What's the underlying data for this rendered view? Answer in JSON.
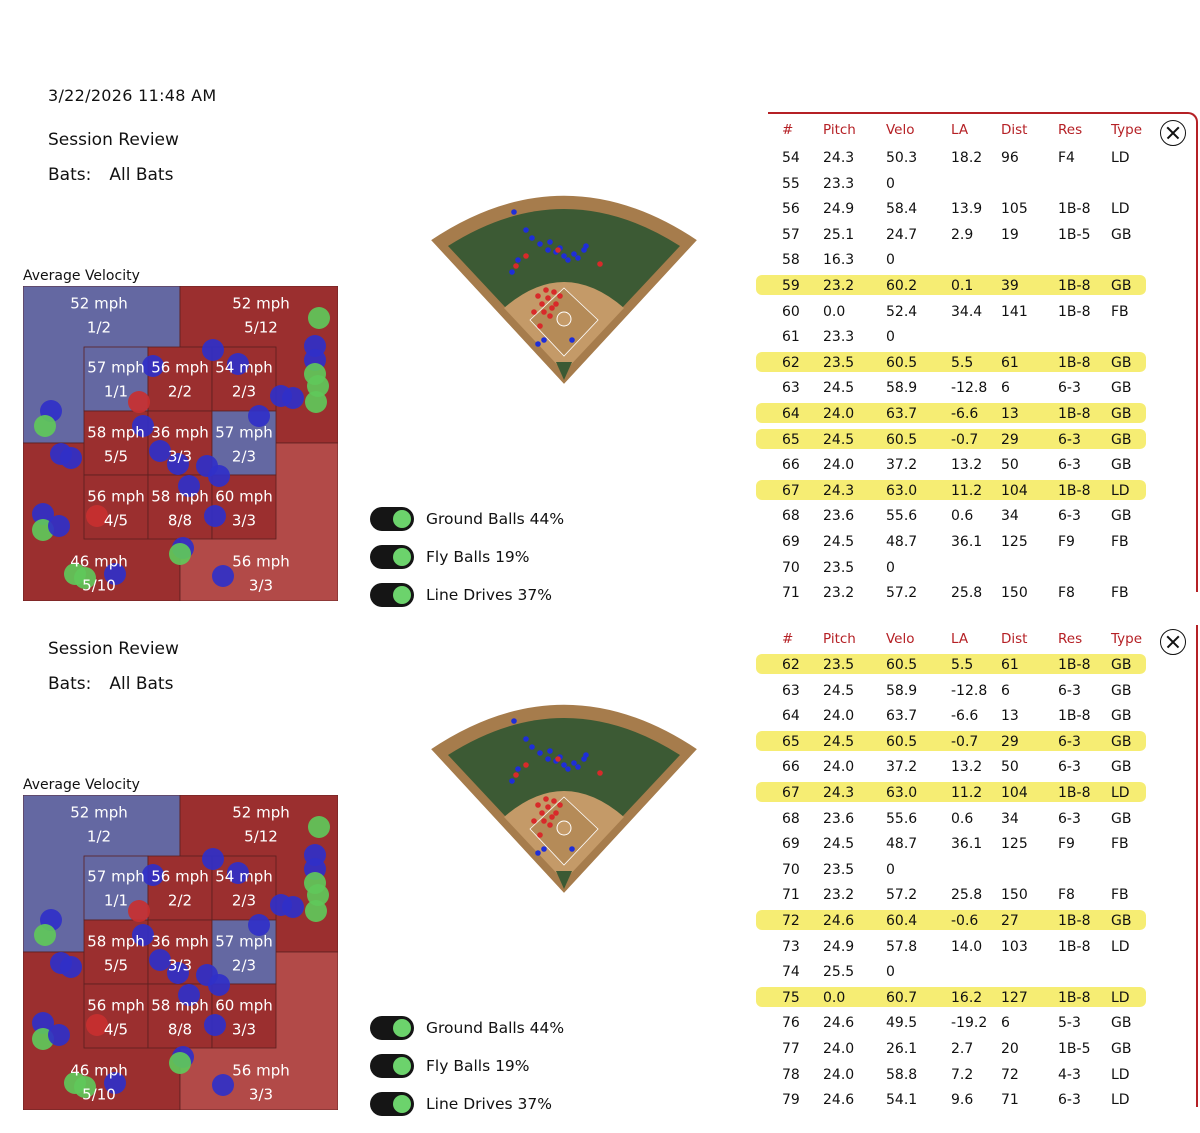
{
  "timestamp": "3/22/2026 11:48 AM",
  "colors": {
    "accent": "#b52025",
    "highlight": "#f4ea5a",
    "zone_red": "#9b2f2f",
    "zone_blue": "#6468a2",
    "toggle_green": "#6cd36c"
  },
  "panels": [
    {
      "title": "Session Review",
      "bats_label": "Bats:",
      "bats_value": "All Bats",
      "avg_velocity_label": "Average Velocity",
      "zones": [
        {
          "speed": "52 mph",
          "ratio": "1/2"
        },
        {
          "speed": "52 mph",
          "ratio": "5/12"
        },
        {
          "speed": "57 mph",
          "ratio": "1/1"
        },
        {
          "speed": "56 mph",
          "ratio": "2/2"
        },
        {
          "speed": "54 mph",
          "ratio": "2/3"
        },
        {
          "speed": "58 mph",
          "ratio": "5/5"
        },
        {
          "speed": "36 mph",
          "ratio": "3/3"
        },
        {
          "speed": "57 mph",
          "ratio": "2/3"
        },
        {
          "speed": "56 mph",
          "ratio": "4/5"
        },
        {
          "speed": "58 mph",
          "ratio": "8/8"
        },
        {
          "speed": "60 mph",
          "ratio": "3/3"
        },
        {
          "speed": "46 mph",
          "ratio": "5/10"
        },
        {
          "speed": "56 mph",
          "ratio": "3/3"
        }
      ],
      "toggles": [
        {
          "label": "Ground Balls 44%"
        },
        {
          "label": "Fly Balls 19%"
        },
        {
          "label": "Line Drives 37%"
        }
      ],
      "table": {
        "headers": [
          "#",
          "Pitch",
          "Velo",
          "LA",
          "Dist",
          "Res",
          "Type"
        ],
        "rows": [
          {
            "n": "54",
            "pitch": "24.3",
            "velo": "50.3",
            "la": "18.2",
            "dist": "96",
            "res": "F4",
            "type": "LD",
            "hl": false
          },
          {
            "n": "55",
            "pitch": "23.3",
            "velo": "0",
            "la": "",
            "dist": "",
            "res": "",
            "type": "",
            "hl": false
          },
          {
            "n": "56",
            "pitch": "24.9",
            "velo": "58.4",
            "la": "13.9",
            "dist": "105",
            "res": "1B-8",
            "type": "LD",
            "hl": false
          },
          {
            "n": "57",
            "pitch": "25.1",
            "velo": "24.7",
            "la": "2.9",
            "dist": "19",
            "res": "1B-5",
            "type": "GB",
            "hl": false
          },
          {
            "n": "58",
            "pitch": "16.3",
            "velo": "0",
            "la": "",
            "dist": "",
            "res": "",
            "type": "",
            "hl": false
          },
          {
            "n": "59",
            "pitch": "23.2",
            "velo": "60.2",
            "la": "0.1",
            "dist": "39",
            "res": "1B-8",
            "type": "GB",
            "hl": true
          },
          {
            "n": "60",
            "pitch": "0.0",
            "velo": "52.4",
            "la": "34.4",
            "dist": "141",
            "res": "1B-8",
            "type": "FB",
            "hl": false
          },
          {
            "n": "61",
            "pitch": "23.3",
            "velo": "0",
            "la": "",
            "dist": "",
            "res": "",
            "type": "",
            "hl": false
          },
          {
            "n": "62",
            "pitch": "23.5",
            "velo": "60.5",
            "la": "5.5",
            "dist": "61",
            "res": "1B-8",
            "type": "GB",
            "hl": true
          },
          {
            "n": "63",
            "pitch": "24.5",
            "velo": "58.9",
            "la": "-12.8",
            "dist": "6",
            "res": "6-3",
            "type": "GB",
            "hl": false
          },
          {
            "n": "64",
            "pitch": "24.0",
            "velo": "63.7",
            "la": "-6.6",
            "dist": "13",
            "res": "1B-8",
            "type": "GB",
            "hl": true
          },
          {
            "n": "65",
            "pitch": "24.5",
            "velo": "60.5",
            "la": "-0.7",
            "dist": "29",
            "res": "6-3",
            "type": "GB",
            "hl": true
          },
          {
            "n": "66",
            "pitch": "24.0",
            "velo": "37.2",
            "la": "13.2",
            "dist": "50",
            "res": "6-3",
            "type": "GB",
            "hl": false
          },
          {
            "n": "67",
            "pitch": "24.3",
            "velo": "63.0",
            "la": "11.2",
            "dist": "104",
            "res": "1B-8",
            "type": "LD",
            "hl": true
          },
          {
            "n": "68",
            "pitch": "23.6",
            "velo": "55.6",
            "la": "0.6",
            "dist": "34",
            "res": "6-3",
            "type": "GB",
            "hl": false
          },
          {
            "n": "69",
            "pitch": "24.5",
            "velo": "48.7",
            "la": "36.1",
            "dist": "125",
            "res": "F9",
            "type": "FB",
            "hl": false
          },
          {
            "n": "70",
            "pitch": "23.5",
            "velo": "0",
            "la": "",
            "dist": "",
            "res": "",
            "type": "",
            "hl": false
          },
          {
            "n": "71",
            "pitch": "23.2",
            "velo": "57.2",
            "la": "25.8",
            "dist": "150",
            "res": "F8",
            "type": "FB",
            "hl": false
          }
        ]
      }
    },
    {
      "title": "Session Review",
      "bats_label": "Bats:",
      "bats_value": "All Bats",
      "avg_velocity_label": "Average Velocity",
      "zones": [
        {
          "speed": "52 mph",
          "ratio": "1/2"
        },
        {
          "speed": "52 mph",
          "ratio": "5/12"
        },
        {
          "speed": "57 mph",
          "ratio": "1/1"
        },
        {
          "speed": "56 mph",
          "ratio": "2/2"
        },
        {
          "speed": "54 mph",
          "ratio": "2/3"
        },
        {
          "speed": "58 mph",
          "ratio": "5/5"
        },
        {
          "speed": "36 mph",
          "ratio": "3/3"
        },
        {
          "speed": "57 mph",
          "ratio": "2/3"
        },
        {
          "speed": "56 mph",
          "ratio": "4/5"
        },
        {
          "speed": "58 mph",
          "ratio": "8/8"
        },
        {
          "speed": "60 mph",
          "ratio": "3/3"
        },
        {
          "speed": "46 mph",
          "ratio": "5/10"
        },
        {
          "speed": "56 mph",
          "ratio": "3/3"
        }
      ],
      "toggles": [
        {
          "label": "Ground Balls 44%"
        },
        {
          "label": "Fly Balls 19%"
        },
        {
          "label": "Line Drives 37%"
        }
      ],
      "table": {
        "headers": [
          "#",
          "Pitch",
          "Velo",
          "LA",
          "Dist",
          "Res",
          "Type"
        ],
        "rows": [
          {
            "n": "62",
            "pitch": "23.5",
            "velo": "60.5",
            "la": "5.5",
            "dist": "61",
            "res": "1B-8",
            "type": "GB",
            "hl": true
          },
          {
            "n": "63",
            "pitch": "24.5",
            "velo": "58.9",
            "la": "-12.8",
            "dist": "6",
            "res": "6-3",
            "type": "GB",
            "hl": false
          },
          {
            "n": "64",
            "pitch": "24.0",
            "velo": "63.7",
            "la": "-6.6",
            "dist": "13",
            "res": "1B-8",
            "type": "GB",
            "hl": false
          },
          {
            "n": "65",
            "pitch": "24.5",
            "velo": "60.5",
            "la": "-0.7",
            "dist": "29",
            "res": "6-3",
            "type": "GB",
            "hl": true
          },
          {
            "n": "66",
            "pitch": "24.0",
            "velo": "37.2",
            "la": "13.2",
            "dist": "50",
            "res": "6-3",
            "type": "GB",
            "hl": false
          },
          {
            "n": "67",
            "pitch": "24.3",
            "velo": "63.0",
            "la": "11.2",
            "dist": "104",
            "res": "1B-8",
            "type": "LD",
            "hl": true
          },
          {
            "n": "68",
            "pitch": "23.6",
            "velo": "55.6",
            "la": "0.6",
            "dist": "34",
            "res": "6-3",
            "type": "GB",
            "hl": false
          },
          {
            "n": "69",
            "pitch": "24.5",
            "velo": "48.7",
            "la": "36.1",
            "dist": "125",
            "res": "F9",
            "type": "FB",
            "hl": false
          },
          {
            "n": "70",
            "pitch": "23.5",
            "velo": "0",
            "la": "",
            "dist": "",
            "res": "",
            "type": "",
            "hl": false
          },
          {
            "n": "71",
            "pitch": "23.2",
            "velo": "57.2",
            "la": "25.8",
            "dist": "150",
            "res": "F8",
            "type": "FB",
            "hl": false
          },
          {
            "n": "72",
            "pitch": "24.6",
            "velo": "60.4",
            "la": "-0.6",
            "dist": "27",
            "res": "1B-8",
            "type": "GB",
            "hl": true
          },
          {
            "n": "73",
            "pitch": "24.9",
            "velo": "57.8",
            "la": "14.0",
            "dist": "103",
            "res": "1B-8",
            "type": "LD",
            "hl": false
          },
          {
            "n": "74",
            "pitch": "25.5",
            "velo": "0",
            "la": "",
            "dist": "",
            "res": "",
            "type": "",
            "hl": false
          },
          {
            "n": "75",
            "pitch": "0.0",
            "velo": "60.7",
            "la": "16.2",
            "dist": "127",
            "res": "1B-8",
            "type": "LD",
            "hl": true
          },
          {
            "n": "76",
            "pitch": "24.6",
            "velo": "49.5",
            "la": "-19.2",
            "dist": "6",
            "res": "5-3",
            "type": "GB",
            "hl": false
          },
          {
            "n": "77",
            "pitch": "24.0",
            "velo": "26.1",
            "la": "2.7",
            "dist": "20",
            "res": "1B-5",
            "type": "GB",
            "hl": false
          },
          {
            "n": "78",
            "pitch": "24.0",
            "velo": "58.8",
            "la": "7.2",
            "dist": "72",
            "res": "4-3",
            "type": "LD",
            "hl": false
          },
          {
            "n": "79",
            "pitch": "24.6",
            "velo": "54.1",
            "la": "9.6",
            "dist": "71",
            "res": "6-3",
            "type": "LD",
            "hl": false
          }
        ]
      }
    }
  ]
}
